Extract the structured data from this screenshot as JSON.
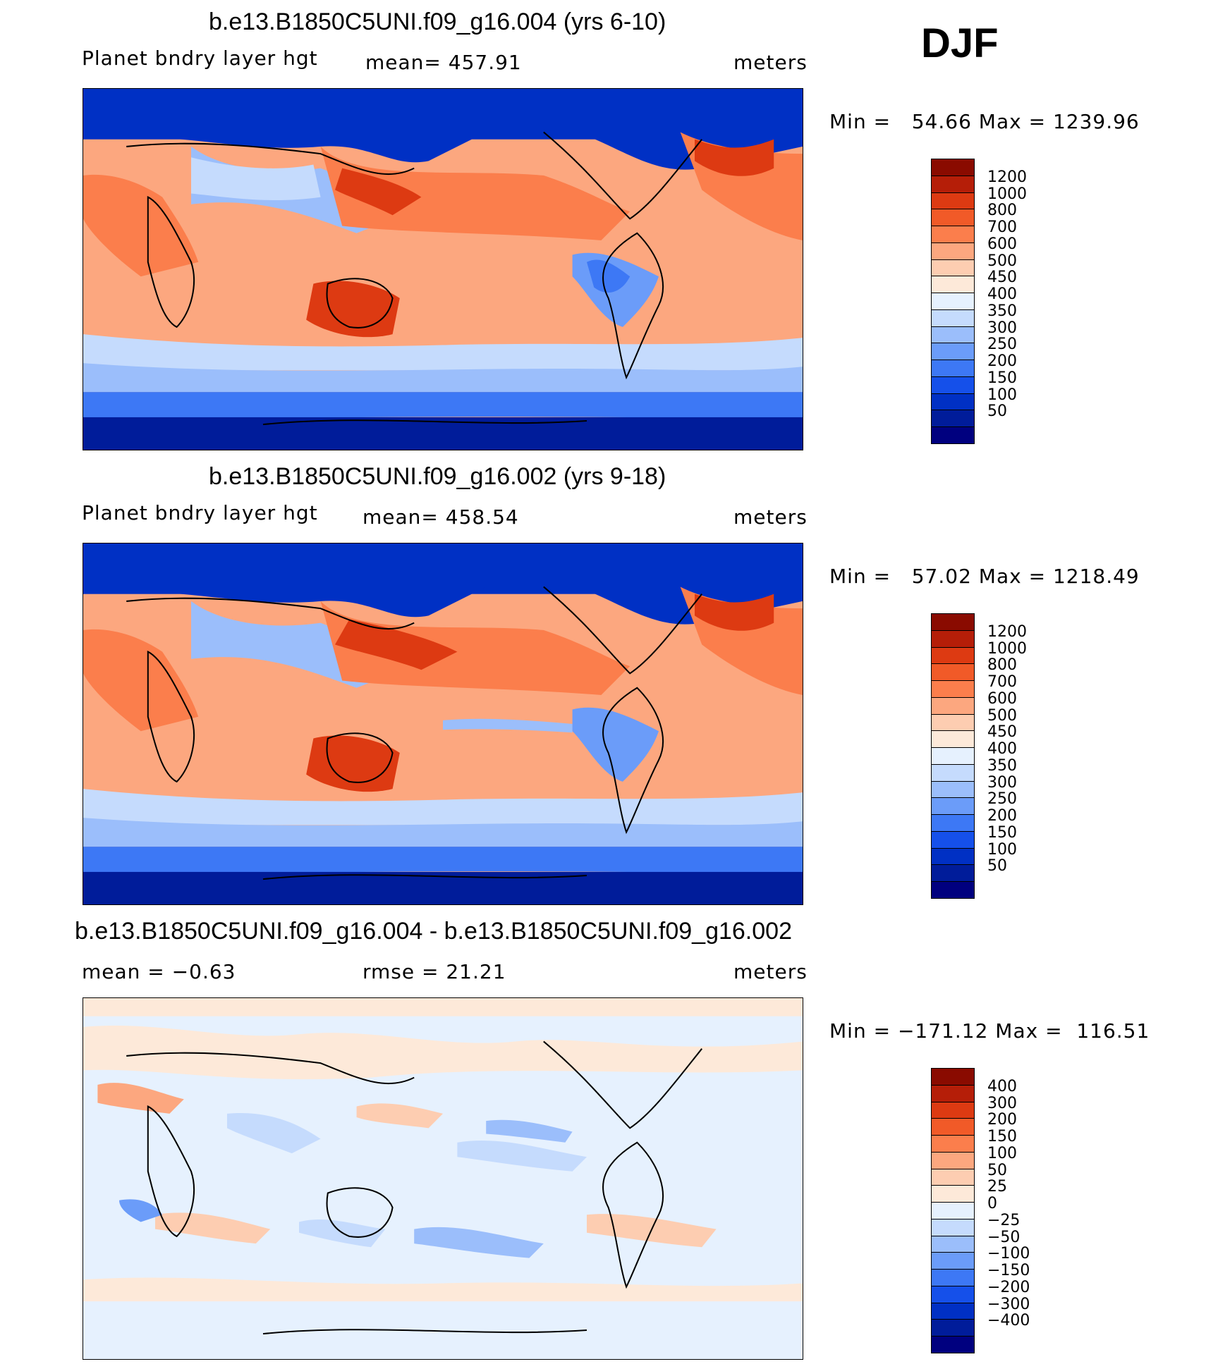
{
  "season": "DJF",
  "panels": [
    {
      "title": "b.e13.B1850C5UNI.f09_g16.004 (yrs 6-10)",
      "left": "Planet bndry layer hgt",
      "center": "mean=  457.91",
      "right": "meters",
      "minmax": "Min =   54.66 Max = 1239.96",
      "colors": [
        "#00007f",
        "#001c9a",
        "#0030c4",
        "#1550ea",
        "#3d78f5",
        "#6b9cf9",
        "#9bbefb",
        "#c5dbfd",
        "#e6f1fe",
        "#fde9d9",
        "#fdcdb1",
        "#fca77f",
        "#fb7e4c",
        "#f15a28",
        "#dd3a12",
        "#b51e08",
        "#8a0b00"
      ],
      "labels": [
        "1200",
        "1000",
        "800",
        "700",
        "600",
        "500",
        "450",
        "400",
        "350",
        "300",
        "250",
        "200",
        "150",
        "100",
        "50"
      ]
    },
    {
      "title": "b.e13.B1850C5UNI.f09_g16.002 (yrs 9-18)",
      "left": "Planet bndry layer hgt",
      "center": "mean=  458.54",
      "right": "meters",
      "minmax": "Min =   57.02 Max = 1218.49",
      "colors": [
        "#00007f",
        "#001c9a",
        "#0030c4",
        "#1550ea",
        "#3d78f5",
        "#6b9cf9",
        "#9bbefb",
        "#c5dbfd",
        "#e6f1fe",
        "#fde9d9",
        "#fdcdb1",
        "#fca77f",
        "#fb7e4c",
        "#f15a28",
        "#dd3a12",
        "#b51e08",
        "#8a0b00"
      ],
      "labels": [
        "1200",
        "1000",
        "800",
        "700",
        "600",
        "500",
        "450",
        "400",
        "350",
        "300",
        "250",
        "200",
        "150",
        "100",
        "50"
      ]
    },
    {
      "title": "b.e13.B1850C5UNI.f09_g16.004 - b.e13.B1850C5UNI.f09_g16.002",
      "left": "mean =   −0.63",
      "center": "rmse =   21.21",
      "right": "meters",
      "minmax": "Min = −171.12 Max =  116.51",
      "colors": [
        "#00007f",
        "#001c9a",
        "#0030c4",
        "#1550ea",
        "#3d78f5",
        "#6b9cf9",
        "#9bbefb",
        "#c5dbfd",
        "#e6f1fe",
        "#fde9d9",
        "#fdcdb1",
        "#fca77f",
        "#fb7e4c",
        "#f15a28",
        "#dd3a12",
        "#b51e08",
        "#8a0b00"
      ],
      "labels": [
        "400",
        "300",
        "200",
        "150",
        "100",
        "50",
        "25",
        "0",
        "−25",
        "−50",
        "−100",
        "−150",
        "−200",
        "−300",
        "−400"
      ]
    }
  ]
}
